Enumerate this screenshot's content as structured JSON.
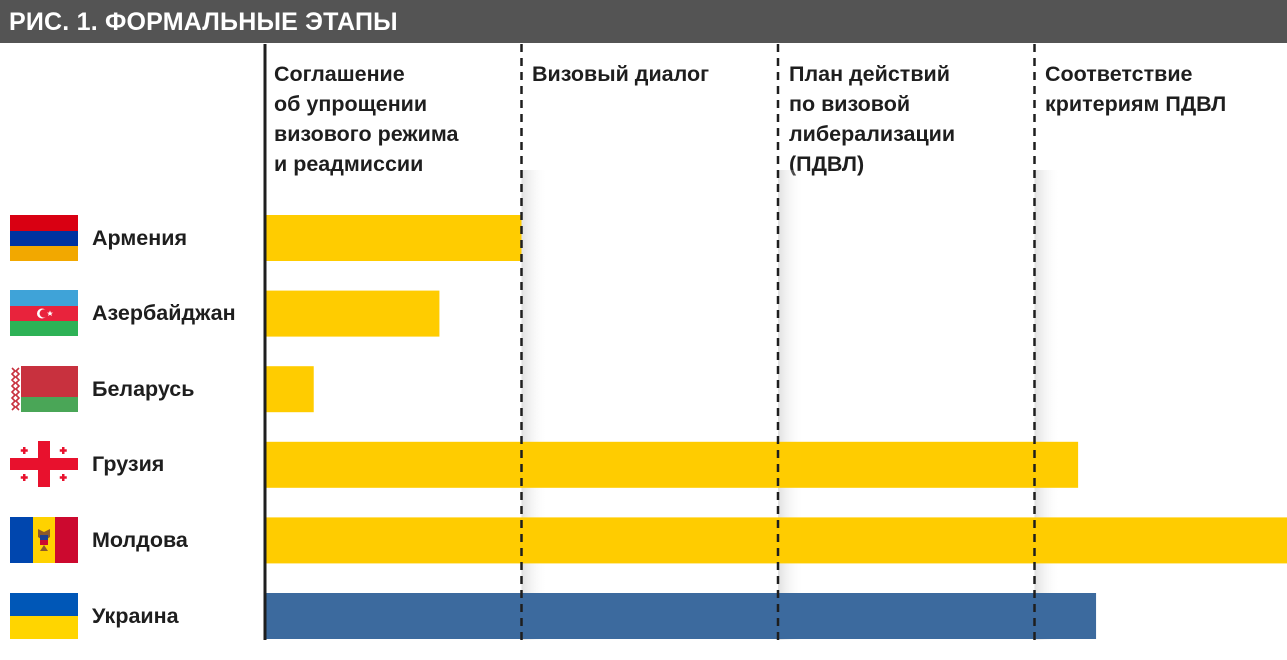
{
  "title": "РИС. 1. ФОРМАЛЬНЫЕ ЭТАПЫ",
  "colors": {
    "title_bg": "#545454",
    "bar_default": "#FFCC00",
    "bar_highlight": "#3C6A9E",
    "axis": "#1e1e1e"
  },
  "chart_data": {
    "type": "bar",
    "orientation": "horizontal",
    "title": "РИС. 1. ФОРМАЛЬНЫЕ ЭТАПЫ",
    "stages": [
      "Соглашение\nоб упрощении\nвизового режима\nи реадмиссии",
      "Визовый диалог",
      "План действий\nпо визовой\nлиберализации\n(ПДВЛ)",
      "Соответствие\nкритериям ПДВЛ"
    ],
    "categories": [
      "Армения",
      "Азербайджан",
      "Беларусь",
      "Грузия",
      "Молдова",
      "Украина"
    ],
    "values": [
      1.0,
      0.68,
      0.19,
      3.17,
      4.0,
      3.24
    ],
    "bar_colors": [
      "#FFCC00",
      "#FFCC00",
      "#FFCC00",
      "#FFCC00",
      "#FFCC00",
      "#3C6A9E"
    ],
    "xlim": [
      0,
      4
    ],
    "flags": [
      "armenia-flag",
      "azerbaijan-flag",
      "belarus-flag",
      "georgia-flag",
      "moldova-flag",
      "ukraine-flag"
    ]
  }
}
